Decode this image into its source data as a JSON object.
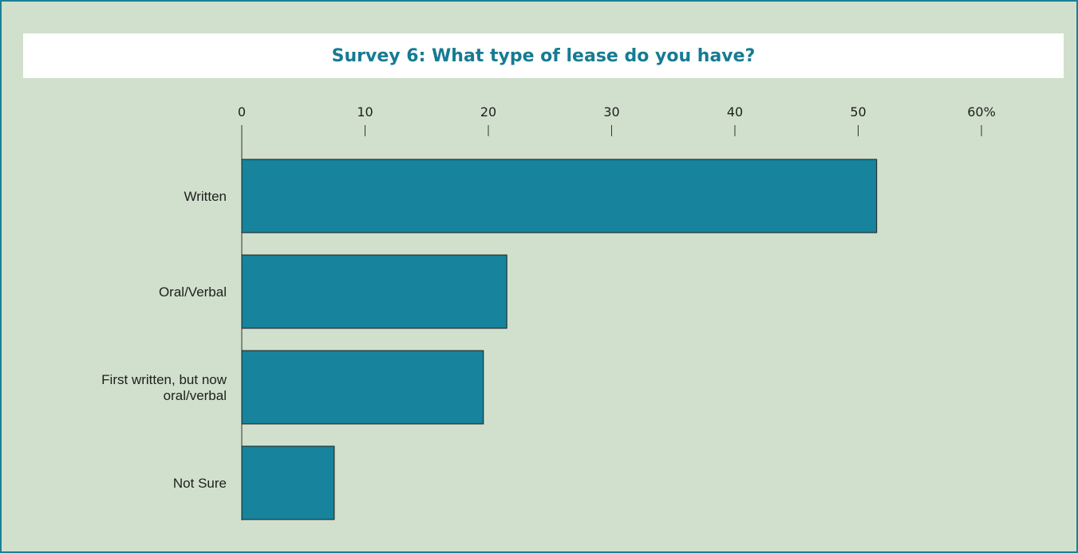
{
  "chart_data": {
    "type": "bar",
    "orientation": "horizontal",
    "title": "Survey 6: What type of lease do you have?",
    "categories": [
      "Written",
      "Oral/Verbal",
      "First written, but now oral/verbal",
      "Not Sure"
    ],
    "category_lines": [
      [
        "Written"
      ],
      [
        "Oral/Verbal"
      ],
      [
        "First written, but now",
        "oral/verbal"
      ],
      [
        "Not Sure"
      ]
    ],
    "values": [
      51.5,
      21.5,
      19.6,
      7.5
    ],
    "xlim": [
      0,
      60
    ],
    "x_ticks": [
      0,
      10,
      20,
      30,
      40,
      50,
      60
    ],
    "x_tick_labels": [
      "0",
      "10",
      "20",
      "30",
      "40",
      "50",
      "60%"
    ],
    "x_axis_position": "top",
    "grid": false,
    "colors": {
      "bar": "#17839c",
      "background": "#d1e0cc",
      "border": "#1a8098",
      "title": "#167b93"
    }
  }
}
